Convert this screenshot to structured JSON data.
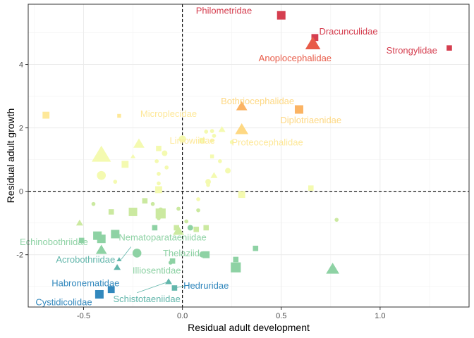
{
  "chart_data": {
    "type": "scatter",
    "xlabel": "Residual adult development",
    "ylabel": "Residual adult growth",
    "xlim": [
      -0.78,
      1.45
    ],
    "ylim": [
      -3.65,
      5.9
    ],
    "x_ticks": [
      -0.5,
      0.0,
      0.5,
      1.0
    ],
    "x_tick_labels": [
      "-0.5",
      "0.0",
      "0.5",
      "1.0"
    ],
    "y_ticks": [
      -2,
      0,
      2,
      4
    ],
    "y_tick_labels": [
      "-2",
      "0",
      "2",
      "4"
    ],
    "grid": true,
    "reference_lines": {
      "x": 0,
      "y": 0
    },
    "colors": {
      "red": "#d53e4f",
      "orange_red": "#e85b48",
      "orange": "#fbb363",
      "light_orange": "#fed883",
      "yellow": "#fee899",
      "pale_yellow": "#f4fab0",
      "light_green": "#cbe9a0",
      "green": "#8ed2a4",
      "teal": "#62b6ab",
      "blue": "#3288bd"
    },
    "points": [
      {
        "x": 0.5,
        "y": 5.55,
        "shape": "square",
        "size": 4,
        "color": "red"
      },
      {
        "x": 0.67,
        "y": 4.85,
        "shape": "square",
        "size": 3,
        "color": "red"
      },
      {
        "x": 0.66,
        "y": 4.65,
        "shape": "triangle",
        "size": 6,
        "color": "orange_red"
      },
      {
        "x": 1.35,
        "y": 4.52,
        "shape": "square",
        "size": 2,
        "color": "red"
      },
      {
        "x": 0.3,
        "y": 2.68,
        "shape": "triangle",
        "size": 4,
        "color": "orange"
      },
      {
        "x": 0.59,
        "y": 2.58,
        "shape": "square",
        "size": 4,
        "color": "orange"
      },
      {
        "x": 0.3,
        "y": 1.95,
        "shape": "triangle",
        "size": 5,
        "color": "light_orange"
      },
      {
        "x": -0.69,
        "y": 2.4,
        "shape": "square",
        "size": 3,
        "color": "yellow"
      },
      {
        "x": -0.32,
        "y": 2.38,
        "shape": "square",
        "size": 1,
        "color": "yellow"
      },
      {
        "x": 0.0,
        "y": 1.65,
        "shape": "circle",
        "size": 3,
        "color": "pale_yellow"
      },
      {
        "x": 0.1,
        "y": 1.6,
        "shape": "square",
        "size": 2,
        "color": "pale_yellow"
      },
      {
        "x": 0.12,
        "y": 1.88,
        "shape": "circle",
        "size": 1,
        "color": "pale_yellow"
      },
      {
        "x": 0.15,
        "y": 1.9,
        "shape": "circle",
        "size": 1,
        "color": "pale_yellow"
      },
      {
        "x": 0.16,
        "y": 1.75,
        "shape": "circle",
        "size": 1,
        "color": "pale_yellow"
      },
      {
        "x": 0.15,
        "y": 1.6,
        "shape": "circle",
        "size": 1,
        "color": "pale_yellow"
      },
      {
        "x": 0.2,
        "y": 1.95,
        "shape": "triangle",
        "size": 2,
        "color": "pale_yellow"
      },
      {
        "x": 0.25,
        "y": 1.55,
        "shape": "circle",
        "size": 1,
        "color": "pale_yellow"
      },
      {
        "x": -0.22,
        "y": 1.5,
        "shape": "triangle",
        "size": 4,
        "color": "pale_yellow"
      },
      {
        "x": -0.12,
        "y": 1.35,
        "shape": "square",
        "size": 2,
        "color": "pale_yellow"
      },
      {
        "x": -0.09,
        "y": 1.2,
        "shape": "circle",
        "size": 2,
        "color": "pale_yellow"
      },
      {
        "x": -0.41,
        "y": 1.15,
        "shape": "triangle",
        "size": 8,
        "color": "pale_yellow"
      },
      {
        "x": -0.25,
        "y": 1.1,
        "shape": "triangle",
        "size": 1,
        "color": "pale_yellow"
      },
      {
        "x": -0.13,
        "y": 0.95,
        "shape": "circle",
        "size": 1,
        "color": "pale_yellow"
      },
      {
        "x": 0.15,
        "y": 1.1,
        "shape": "square",
        "size": 1,
        "color": "pale_yellow"
      },
      {
        "x": 0.19,
        "y": 0.95,
        "shape": "circle",
        "size": 1,
        "color": "pale_yellow"
      },
      {
        "x": -0.29,
        "y": 0.85,
        "shape": "square",
        "size": 3,
        "color": "pale_yellow"
      },
      {
        "x": -0.08,
        "y": 0.75,
        "shape": "circle",
        "size": 1,
        "color": "pale_yellow"
      },
      {
        "x": 0.23,
        "y": 0.65,
        "shape": "circle",
        "size": 2,
        "color": "pale_yellow"
      },
      {
        "x": -0.41,
        "y": 0.5,
        "shape": "circle",
        "size": 4,
        "color": "pale_yellow"
      },
      {
        "x": -0.12,
        "y": 0.55,
        "shape": "circle",
        "size": 1,
        "color": "pale_yellow"
      },
      {
        "x": 0.16,
        "y": 0.5,
        "shape": "triangle",
        "size": 2,
        "color": "pale_yellow"
      },
      {
        "x": 0.13,
        "y": 0.3,
        "shape": "circle",
        "size": 2,
        "color": "pale_yellow"
      },
      {
        "x": 0.13,
        "y": 0.2,
        "shape": "circle",
        "size": 1,
        "color": "pale_yellow"
      },
      {
        "x": -0.34,
        "y": 0.3,
        "shape": "circle",
        "size": 1,
        "color": "pale_yellow"
      },
      {
        "x": -0.12,
        "y": 0.25,
        "shape": "circle",
        "size": 1,
        "color": "pale_yellow"
      },
      {
        "x": -0.12,
        "y": 0.05,
        "shape": "square",
        "size": 3,
        "color": "pale_yellow"
      },
      {
        "x": 0.65,
        "y": 0.1,
        "shape": "square",
        "size": 2,
        "color": "pale_yellow"
      },
      {
        "x": 0.3,
        "y": -0.1,
        "shape": "square",
        "size": 3,
        "color": "pale_yellow"
      },
      {
        "x": 0.08,
        "y": -0.25,
        "shape": "circle",
        "size": 1,
        "color": "pale_yellow"
      },
      {
        "x": -0.19,
        "y": -0.3,
        "shape": "square",
        "size": 2,
        "color": "light_green"
      },
      {
        "x": -0.15,
        "y": -0.4,
        "shape": "circle",
        "size": 1,
        "color": "light_green"
      },
      {
        "x": -0.45,
        "y": -0.4,
        "shape": "circle",
        "size": 1,
        "color": "light_green"
      },
      {
        "x": -0.36,
        "y": -0.65,
        "shape": "square",
        "size": 2,
        "color": "light_green"
      },
      {
        "x": -0.25,
        "y": -0.65,
        "shape": "square",
        "size": 4,
        "color": "light_green"
      },
      {
        "x": -0.11,
        "y": -0.7,
        "shape": "square",
        "size": 5,
        "color": "light_green"
      },
      {
        "x": -0.11,
        "y": -0.6,
        "shape": "circle",
        "size": 2,
        "color": "light_green"
      },
      {
        "x": -0.02,
        "y": -0.55,
        "shape": "circle",
        "size": 1,
        "color": "light_green"
      },
      {
        "x": 0.08,
        "y": -0.6,
        "shape": "circle",
        "size": 1,
        "color": "light_green"
      },
      {
        "x": -0.12,
        "y": -0.85,
        "shape": "circle",
        "size": 1,
        "color": "light_green"
      },
      {
        "x": 0.02,
        "y": -0.95,
        "shape": "circle",
        "size": 1,
        "color": "light_green"
      },
      {
        "x": 0.78,
        "y": -0.9,
        "shape": "circle",
        "size": 1,
        "color": "light_green"
      },
      {
        "x": -0.52,
        "y": -1.0,
        "shape": "triangle",
        "size": 2,
        "color": "light_green"
      },
      {
        "x": -0.14,
        "y": -1.15,
        "shape": "square",
        "size": 2,
        "color": "green"
      },
      {
        "x": 0.04,
        "y": -1.15,
        "shape": "circle",
        "size": 2,
        "color": "green"
      },
      {
        "x": 0.07,
        "y": -1.2,
        "shape": "square",
        "size": 2,
        "color": "light_green"
      },
      {
        "x": -0.03,
        "y": -1.15,
        "shape": "square",
        "size": 2,
        "color": "light_green"
      },
      {
        "x": 0.12,
        "y": -1.15,
        "shape": "square",
        "size": 2,
        "color": "light_green"
      },
      {
        "x": -0.02,
        "y": -1.25,
        "shape": "triangle",
        "size": 4,
        "color": "light_green"
      },
      {
        "x": -0.34,
        "y": -1.35,
        "shape": "square",
        "size": 4,
        "color": "green"
      },
      {
        "x": -0.43,
        "y": -1.4,
        "shape": "square",
        "size": 4,
        "color": "green"
      },
      {
        "x": -0.41,
        "y": -1.5,
        "shape": "square",
        "size": 4,
        "color": "green"
      },
      {
        "x": -0.51,
        "y": -1.55,
        "shape": "square",
        "size": 2,
        "color": "green"
      },
      {
        "x": -0.41,
        "y": -1.85,
        "shape": "triangle",
        "size": 4,
        "color": "green"
      },
      {
        "x": -0.23,
        "y": -1.95,
        "shape": "circle",
        "size": 4,
        "color": "green"
      },
      {
        "x": 0.1,
        "y": -2.0,
        "shape": "circle",
        "size": 2,
        "color": "green"
      },
      {
        "x": 0.12,
        "y": -2.0,
        "shape": "square",
        "size": 3,
        "color": "green"
      },
      {
        "x": 0.27,
        "y": -2.15,
        "shape": "square",
        "size": 2,
        "color": "green"
      },
      {
        "x": 0.37,
        "y": -1.8,
        "shape": "square",
        "size": 2,
        "color": "green"
      },
      {
        "x": 0.27,
        "y": -2.4,
        "shape": "square",
        "size": 5,
        "color": "green"
      },
      {
        "x": 0.76,
        "y": -2.45,
        "shape": "triangle",
        "size": 5,
        "color": "green"
      },
      {
        "x": -0.05,
        "y": -2.2,
        "shape": "square",
        "size": 2,
        "color": "green"
      },
      {
        "x": -0.06,
        "y": -2.25,
        "shape": "circle",
        "size": 1,
        "color": "green"
      },
      {
        "x": -0.32,
        "y": -2.15,
        "shape": "triangle",
        "size": 1,
        "color": "teal"
      },
      {
        "x": -0.33,
        "y": -2.4,
        "shape": "triangle",
        "size": 2,
        "color": "teal"
      },
      {
        "x": -0.07,
        "y": -2.85,
        "shape": "triangle",
        "size": 2,
        "color": "teal"
      },
      {
        "x": -0.04,
        "y": -3.05,
        "shape": "square",
        "size": 2,
        "color": "teal"
      },
      {
        "x": -0.36,
        "y": -3.1,
        "shape": "square",
        "size": 3,
        "color": "blue"
      },
      {
        "x": -0.42,
        "y": -3.25,
        "shape": "square",
        "size": 4,
        "color": "blue"
      }
    ],
    "labels": [
      {
        "text": "Philometridae",
        "x": 0.21,
        "y": 5.7,
        "color": "red"
      },
      {
        "text": "Dracunculidae",
        "x": 0.84,
        "y": 5.05,
        "color": "red"
      },
      {
        "text": "Anoplocephalidae",
        "x": 0.57,
        "y": 4.2,
        "color": "orange_red"
      },
      {
        "text": "Strongylidae",
        "x": 1.16,
        "y": 4.45,
        "color": "red"
      },
      {
        "text": "Bothriocephalidae",
        "x": 0.38,
        "y": 2.85,
        "color": "light_orange"
      },
      {
        "text": "Diplotriaenidae",
        "x": 0.65,
        "y": 2.25,
        "color": "light_orange"
      },
      {
        "text": "Microplecidae",
        "x": -0.07,
        "y": 2.45,
        "color": "yellow"
      },
      {
        "text": "Liniowiidae",
        "x": 0.05,
        "y": 1.6,
        "color": "yellow"
      },
      {
        "text": "Proteocephalidae",
        "x": 0.43,
        "y": 1.55,
        "color": "yellow"
      },
      {
        "text": "Echinobothriidae",
        "x": -0.65,
        "y": -1.6,
        "color": "green"
      },
      {
        "text": "Nematoparataeniidae",
        "x": -0.1,
        "y": -1.45,
        "color": "green"
      },
      {
        "text": "Acrobothriidae",
        "x": -0.49,
        "y": -2.15,
        "color": "teal"
      },
      {
        "text": "Thelaziidae",
        "x": 0.02,
        "y": -1.95,
        "color": "green"
      },
      {
        "text": "Illiosentidae",
        "x": -0.13,
        "y": -2.5,
        "color": "green"
      },
      {
        "text": "Habronematidae",
        "x": -0.49,
        "y": -2.9,
        "color": "blue"
      },
      {
        "text": "Hedruridae",
        "x": 0.12,
        "y": -2.97,
        "color": "blue"
      },
      {
        "text": "Cystidicolidae",
        "x": -0.6,
        "y": -3.5,
        "color": "blue"
      },
      {
        "text": "Schistotaeniidae",
        "x": -0.18,
        "y": -3.4,
        "color": "teal"
      }
    ],
    "leader_lines": [
      {
        "from": [
          -0.26,
          -1.75
        ],
        "to": [
          -0.31,
          -2.15
        ],
        "color": "teal"
      },
      {
        "from": [
          -0.23,
          -3.2
        ],
        "to": [
          -0.07,
          -2.85
        ],
        "color": "teal"
      },
      {
        "from": [
          0.04,
          -2.95
        ],
        "to": [
          -0.04,
          -3.05
        ],
        "color": "teal"
      }
    ]
  }
}
